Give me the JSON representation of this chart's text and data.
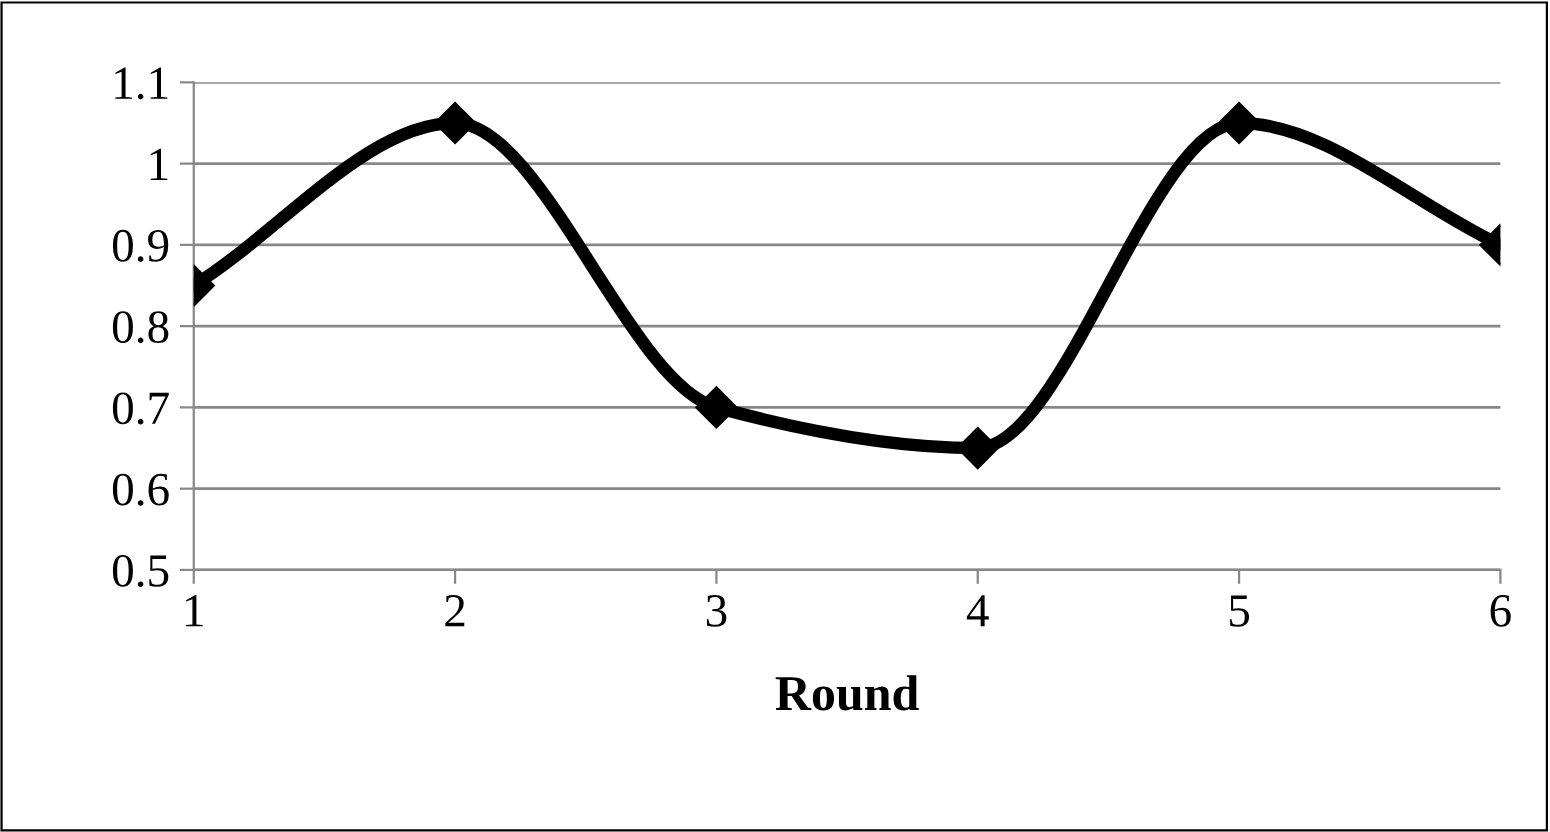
{
  "chart_data": {
    "type": "line",
    "xlabel": "Round",
    "categories": [
      "1",
      "2",
      "3",
      "4",
      "5",
      "6"
    ],
    "series": [
      {
        "color": "#000000",
        "values": [
          0.85,
          1.05,
          0.7,
          0.65,
          1.05,
          0.9
        ]
      }
    ],
    "ylim": [
      0.5,
      1.1
    ],
    "yticks": [
      0.5,
      0.6,
      0.7,
      0.8,
      0.9,
      1,
      1.1
    ],
    "grid": "y",
    "marker": "diamond",
    "line_style": "solid",
    "legend": false
  }
}
